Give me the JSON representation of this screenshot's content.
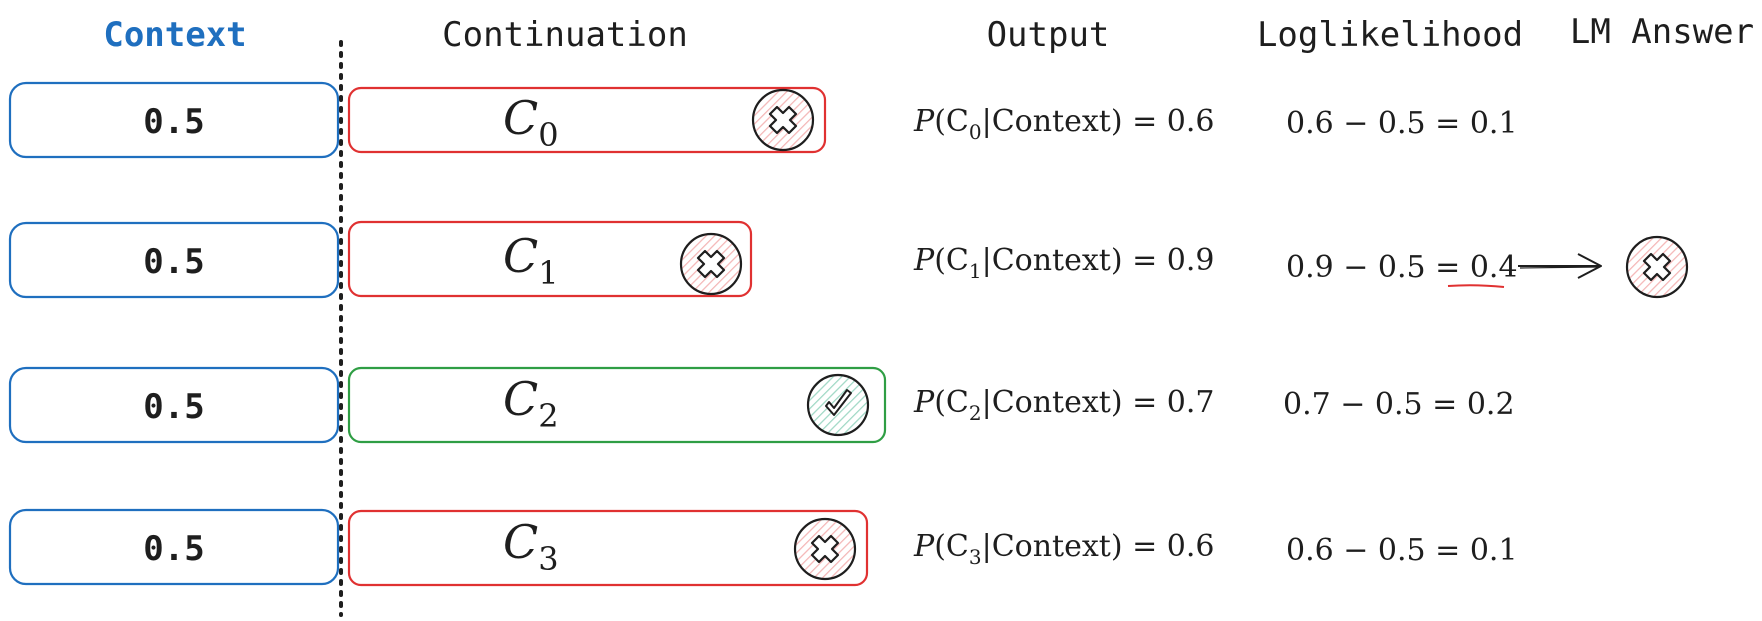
{
  "headers": {
    "context": "Context",
    "continuation": "Continuation",
    "output": "Output",
    "loglikelihood": "Loglikelihood",
    "lm_answer": "LM Answer"
  },
  "colors": {
    "context_blue": "#1f6fbf",
    "wrong_red": "#e03131",
    "correct_green": "#2f9e44",
    "hatch_red": "#f4b6b6",
    "hatch_green": "#9fd8c5",
    "text": "#1e1e1e"
  },
  "rows": [
    {
      "context_value": "0.5",
      "continuation_var": "C",
      "continuation_sub": "0",
      "status": "wrong",
      "status_icon": "x-circle-icon",
      "output_p": "P",
      "output_cond": "(C",
      "output_sub": "0",
      "output_rest": "|Context) = 0.6",
      "loglik_expr": "0.6 − 0.5 = 0.1"
    },
    {
      "context_value": "0.5",
      "continuation_var": "C",
      "continuation_sub": "1",
      "status": "wrong",
      "status_icon": "x-circle-icon",
      "output_p": "P",
      "output_cond": "(C",
      "output_sub": "1",
      "output_rest": "|Context) = 0.9",
      "loglik_expr": "0.9 − 0.5 = ",
      "loglik_highlight": "0.4",
      "selected": true
    },
    {
      "context_value": "0.5",
      "continuation_var": "C",
      "continuation_sub": "2",
      "status": "correct",
      "status_icon": "check-circle-icon",
      "output_p": "P",
      "output_cond": "(C",
      "output_sub": "2",
      "output_rest": "|Context) = 0.7",
      "loglik_expr": "0.7 − 0.5 = 0.2"
    },
    {
      "context_value": "0.5",
      "continuation_var": "C",
      "continuation_sub": "3",
      "status": "wrong",
      "status_icon": "x-circle-icon",
      "output_p": "P",
      "output_cond": "(C",
      "output_sub": "3",
      "output_rest": "|Context) = 0.6",
      "loglik_expr": "0.6 − 0.5 = 0.1"
    }
  ],
  "lm_answer": {
    "status": "wrong",
    "icon": "x-circle-icon"
  }
}
